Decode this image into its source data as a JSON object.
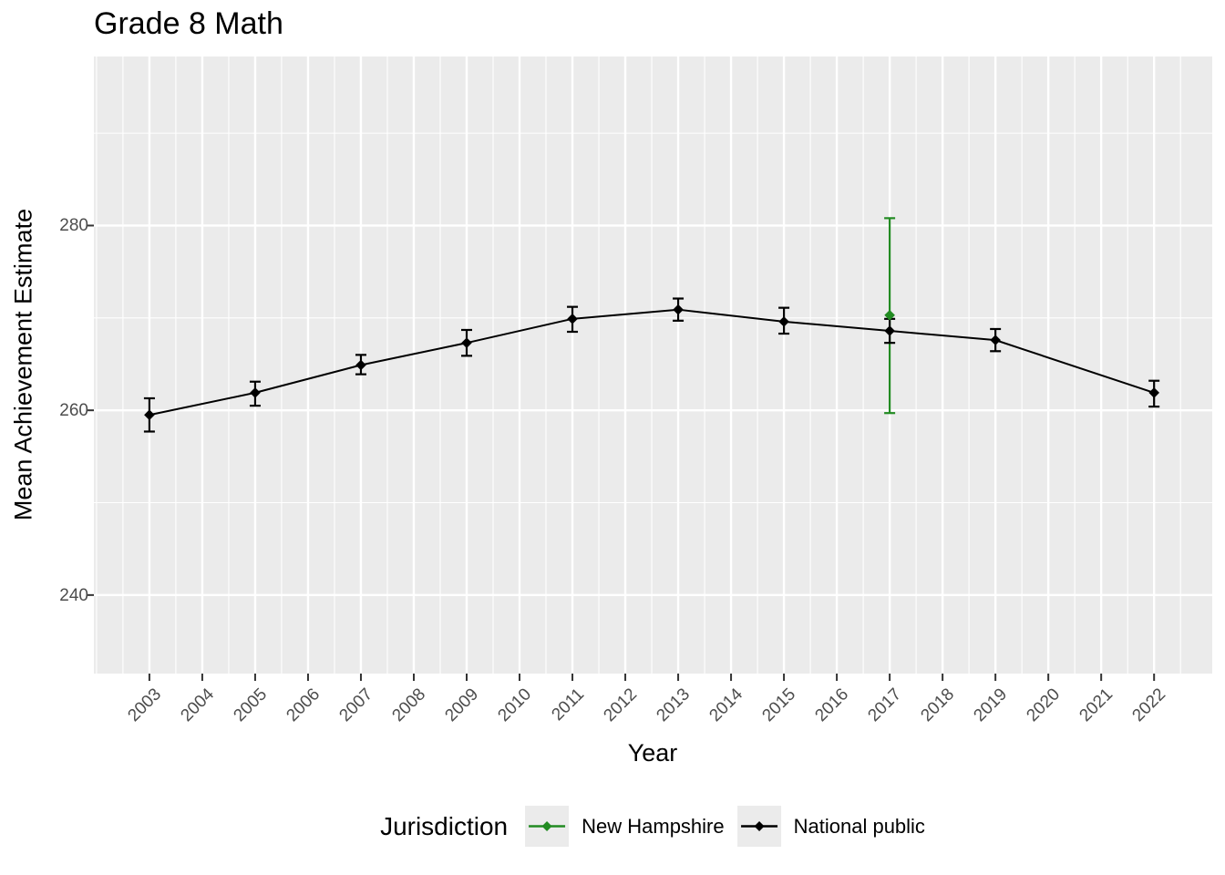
{
  "chart_data": {
    "type": "line",
    "title": "Grade 8 Math",
    "xlabel": "Year",
    "ylabel": "Mean Achievement Estimate",
    "legend_title": "Jurisdiction",
    "legend_position": "bottom",
    "grid": true,
    "x_ticks": [
      2003,
      2004,
      2005,
      2006,
      2007,
      2008,
      2009,
      2010,
      2011,
      2012,
      2013,
      2014,
      2015,
      2016,
      2017,
      2018,
      2019,
      2020,
      2021,
      2022
    ],
    "x_tick_labels": [
      "2003",
      "2004",
      "2005",
      "2006",
      "2007",
      "2008",
      "2009",
      "2010",
      "2011",
      "2012",
      "2013",
      "2014",
      "2015",
      "2016",
      "2017",
      "2018",
      "2019",
      "2020",
      "2021",
      "2022"
    ],
    "y_ticks": [
      240,
      260,
      280
    ],
    "y_tick_labels": [
      "240",
      "260",
      "280"
    ],
    "y_minor_ticks": [
      250,
      270,
      290
    ],
    "xlim": [
      2001.95,
      2023.1
    ],
    "ylim": [
      231.5,
      298.3
    ],
    "series": [
      {
        "name": "New Hampshire",
        "color": "#228B22",
        "draw_line": false,
        "years": [
          2017
        ],
        "values": [
          270.3
        ],
        "ci_low": [
          259.7
        ],
        "ci_high": [
          280.8
        ]
      },
      {
        "name": "National public",
        "color": "#000000",
        "draw_line": true,
        "years": [
          2003,
          2005,
          2007,
          2009,
          2011,
          2013,
          2015,
          2017,
          2019,
          2022
        ],
        "values": [
          259.5,
          261.9,
          264.9,
          267.3,
          269.9,
          270.9,
          269.6,
          268.6,
          267.6,
          261.9
        ],
        "ci_low": [
          257.7,
          260.5,
          263.9,
          265.9,
          268.5,
          269.7,
          268.3,
          267.3,
          266.4,
          260.4
        ],
        "ci_high": [
          261.3,
          263.1,
          266.0,
          268.7,
          271.2,
          272.1,
          271.1,
          269.9,
          268.8,
          263.2
        ]
      }
    ],
    "colors": {
      "panel_bg": "#EBEBEB",
      "grid": "#FFFFFF",
      "tick_text": "#4D4D4D",
      "axis_tick": "#333333",
      "legend_key_bg": "#EBEBEB"
    }
  }
}
